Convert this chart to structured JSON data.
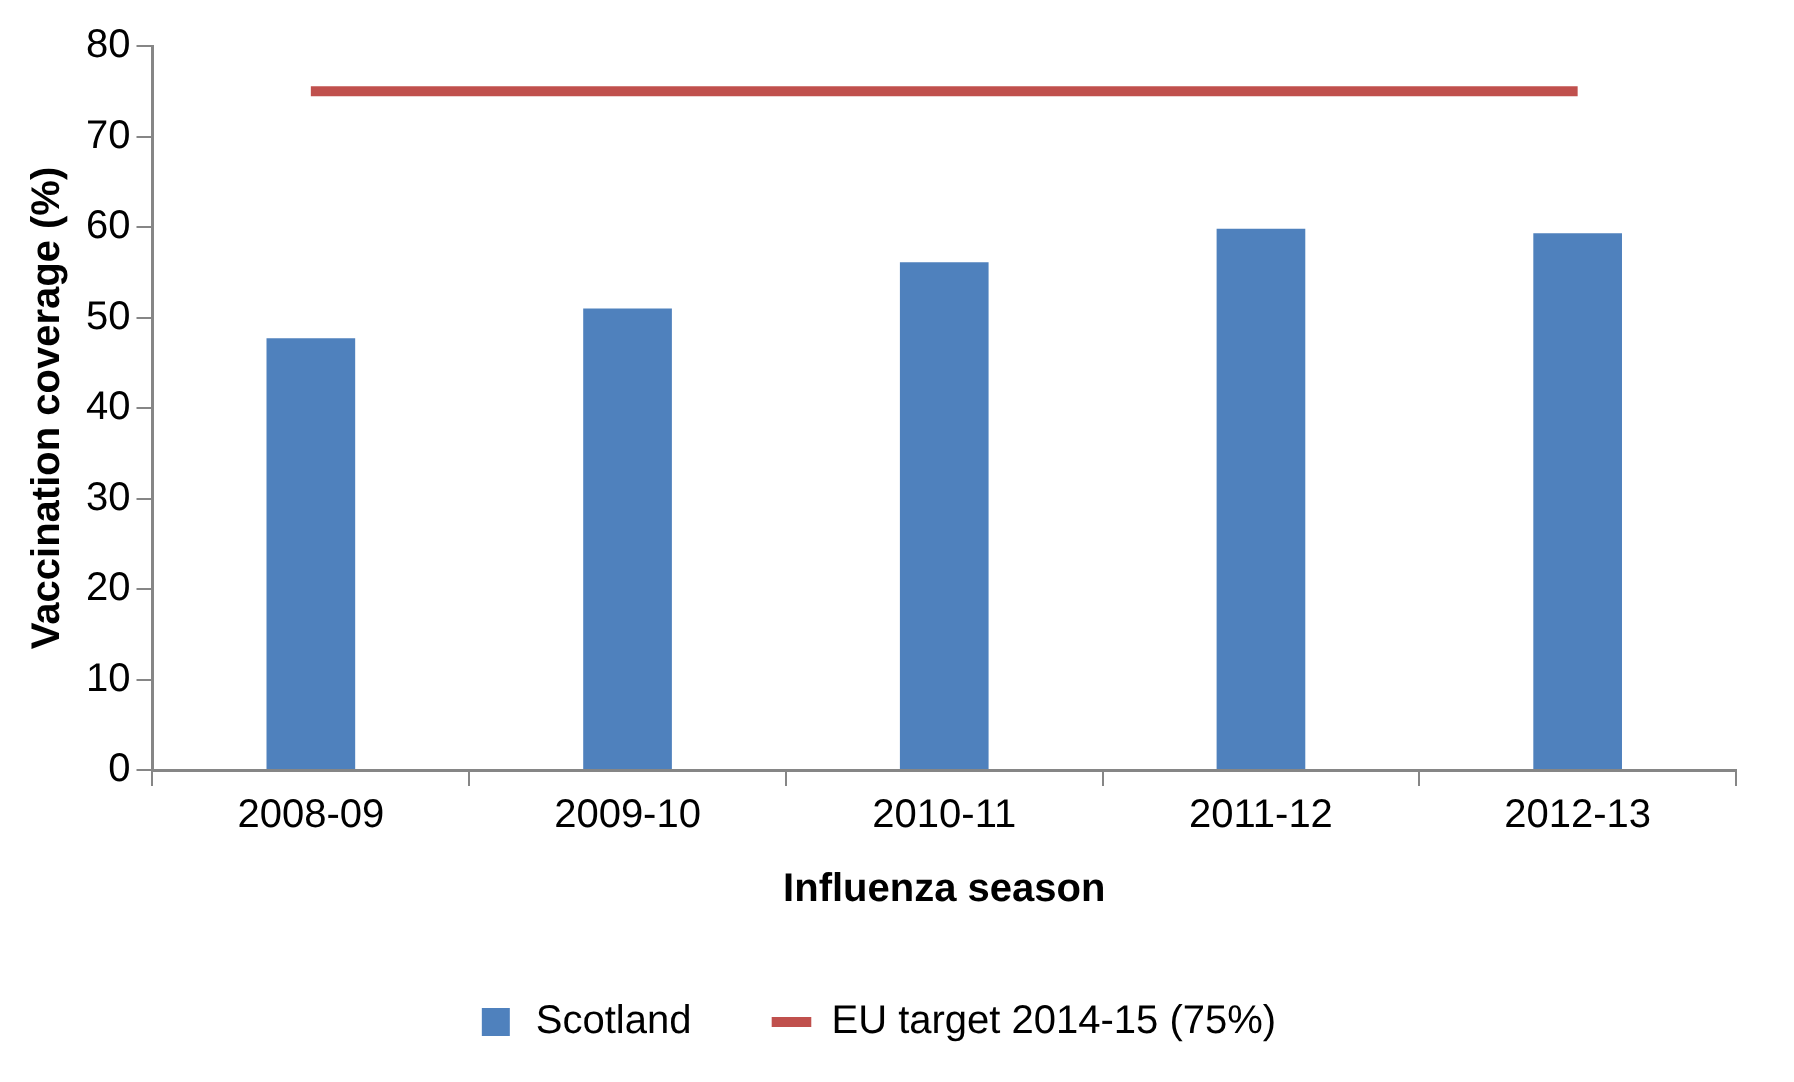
{
  "chart_data": {
    "type": "bar",
    "xlabel": "Influenza season",
    "ylabel": "Vaccination coverage (%)",
    "categories": [
      "2008-09",
      "2009-10",
      "2010-11",
      "2011-12",
      "2012-13"
    ],
    "series": [
      {
        "name": "Scotland",
        "color": "#4f81bd",
        "values": [
          47.7,
          51.0,
          56.1,
          59.8,
          59.3
        ]
      },
      {
        "name": "EU target 2014-15 (75%)",
        "type": "line",
        "color": "#c0504d",
        "values": [
          75,
          75,
          75,
          75,
          75
        ]
      }
    ],
    "ylim": [
      0,
      80
    ],
    "yticks": [
      0,
      10,
      20,
      30,
      40,
      50,
      60,
      70,
      80
    ],
    "grid": false,
    "legend": "bottom",
    "marker": "none",
    "line_style": "solid"
  }
}
